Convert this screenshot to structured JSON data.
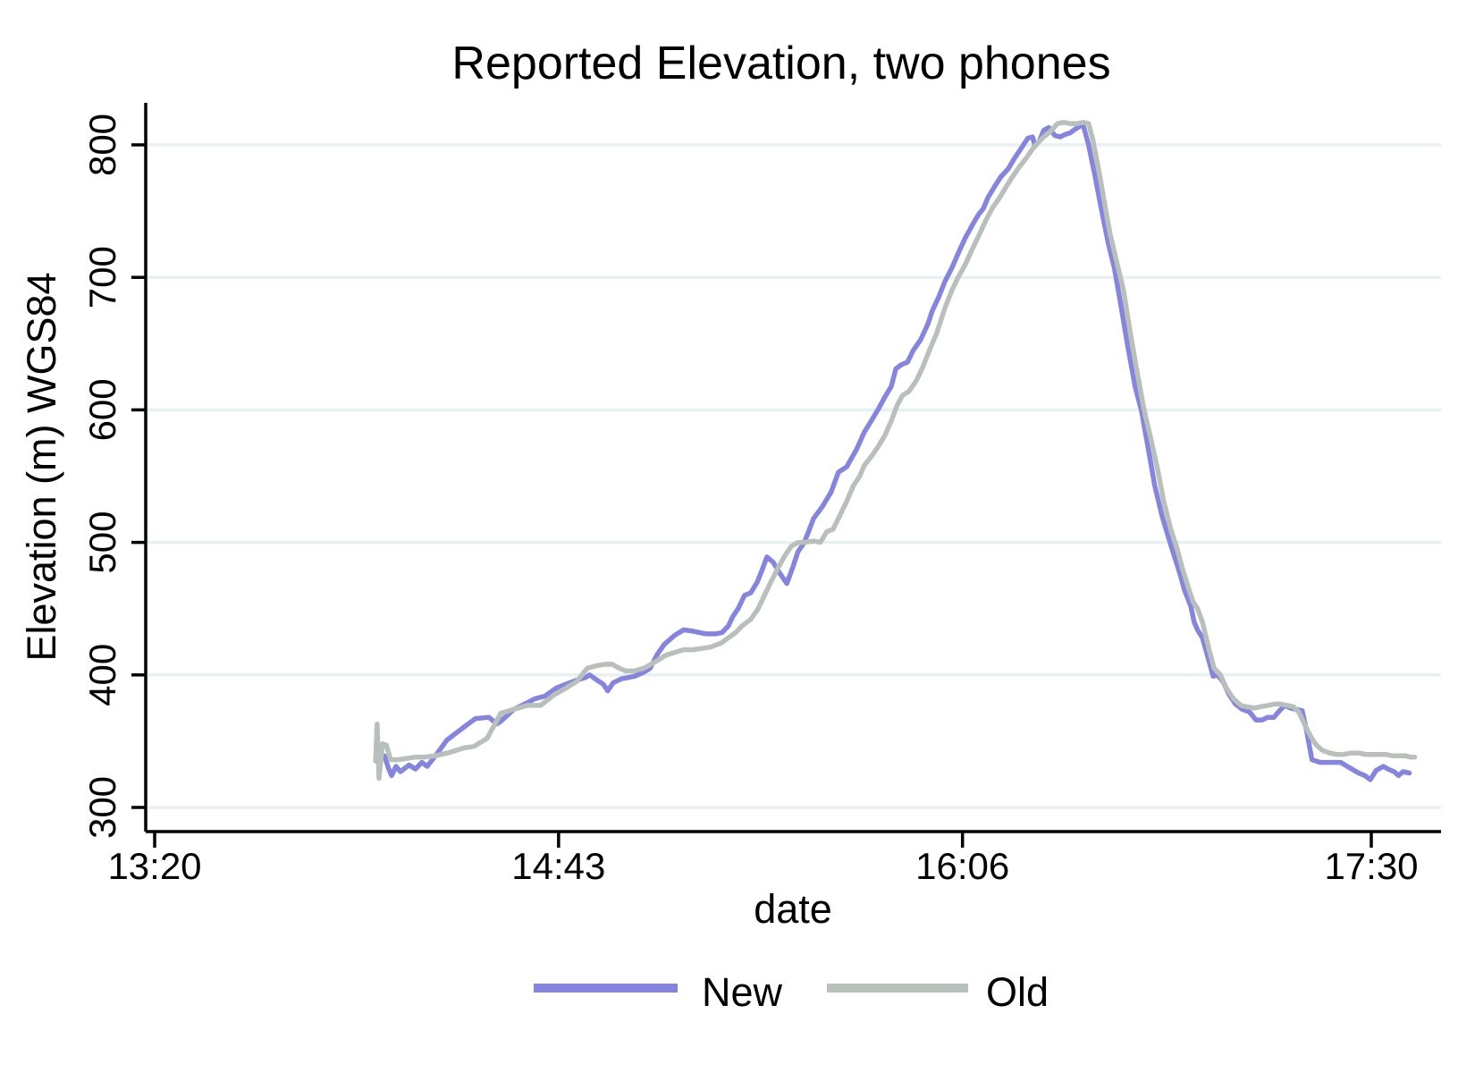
{
  "colors": {
    "title": "#21375c",
    "axis": "#000000",
    "grid": "#e8f1f1",
    "background": "#ffffff",
    "new_line": "#8585e0",
    "old_line": "#b9c0bb"
  },
  "chart_data": {
    "type": "line",
    "title": "Reported Elevation, two phones",
    "xlabel": "date",
    "ylabel": "Elevation (m) WGS84",
    "grid": "horizontal",
    "legend_position": "bottom",
    "x_unit": "minutes since midnight (13:20 = 800)",
    "xlim": [
      798,
      1064
    ],
    "ylim": [
      282,
      832
    ],
    "xticks": [
      {
        "t": 800,
        "label": "13:20"
      },
      {
        "t": 883,
        "label": "14:43"
      },
      {
        "t": 966,
        "label": "16:06"
      },
      {
        "t": 1050,
        "label": "17:30"
      }
    ],
    "yticks": [
      300,
      400,
      500,
      600,
      700,
      800
    ],
    "series": [
      {
        "name": "New",
        "color": "#8585e0",
        "points": [
          [
            847.2,
            339
          ],
          [
            848.1,
            329
          ],
          [
            848.7,
            324
          ],
          [
            849.6,
            331
          ],
          [
            850.5,
            327
          ],
          [
            852.3,
            332
          ],
          [
            853.6,
            329
          ],
          [
            854.9,
            334
          ],
          [
            856.0,
            331
          ],
          [
            857.7,
            339
          ],
          [
            860.1,
            351
          ],
          [
            863.7,
            361
          ],
          [
            865.9,
            367
          ],
          [
            868.7,
            368
          ],
          [
            870.3,
            363
          ],
          [
            871.1,
            365
          ],
          [
            873.8,
            374
          ],
          [
            876.6,
            379
          ],
          [
            878.1,
            382
          ],
          [
            880.2,
            384
          ],
          [
            882.5,
            390
          ],
          [
            884.5,
            393
          ],
          [
            886.7,
            396
          ],
          [
            888.5,
            398
          ],
          [
            889.4,
            400
          ],
          [
            890.9,
            396
          ],
          [
            892.2,
            393
          ],
          [
            893.1,
            388
          ],
          [
            894.2,
            394
          ],
          [
            895.9,
            397
          ],
          [
            898.6,
            399
          ],
          [
            900.5,
            402
          ],
          [
            901.8,
            405
          ],
          [
            903.2,
            415
          ],
          [
            904.7,
            423
          ],
          [
            906.9,
            430
          ],
          [
            908.7,
            434
          ],
          [
            910.6,
            433
          ],
          [
            913.3,
            431
          ],
          [
            915.2,
            431
          ],
          [
            916.6,
            432
          ],
          [
            917.9,
            437
          ],
          [
            918.8,
            444
          ],
          [
            919.9,
            450
          ],
          [
            921.2,
            460
          ],
          [
            922.5,
            462
          ],
          [
            923.8,
            470
          ],
          [
            924.9,
            480
          ],
          [
            925.8,
            489
          ],
          [
            927.1,
            485
          ],
          [
            928.4,
            477
          ],
          [
            929.9,
            469
          ],
          [
            931.0,
            480
          ],
          [
            932.2,
            493
          ],
          [
            933.5,
            500
          ],
          [
            935.4,
            518
          ],
          [
            937.2,
            527
          ],
          [
            939.0,
            538
          ],
          [
            940.5,
            553
          ],
          [
            942.2,
            557
          ],
          [
            944.2,
            570
          ],
          [
            945.8,
            583
          ],
          [
            947.3,
            592
          ],
          [
            948.6,
            600
          ],
          [
            950.1,
            610
          ],
          [
            951.4,
            618
          ],
          [
            952.3,
            631
          ],
          [
            953.4,
            634
          ],
          [
            954.7,
            636
          ],
          [
            955.9,
            645
          ],
          [
            957.4,
            653
          ],
          [
            958.9,
            665
          ],
          [
            959.8,
            675
          ],
          [
            961.1,
            685
          ],
          [
            962.4,
            697
          ],
          [
            963.8,
            707
          ],
          [
            965.1,
            718
          ],
          [
            966.6,
            730
          ],
          [
            968.4,
            742
          ],
          [
            969.4,
            748
          ],
          [
            970.3,
            752
          ],
          [
            971.2,
            760
          ],
          [
            972.5,
            768
          ],
          [
            973.9,
            776
          ],
          [
            975.4,
            782
          ],
          [
            976.7,
            790
          ],
          [
            978.0,
            797
          ],
          [
            979.4,
            805
          ],
          [
            980.4,
            806
          ],
          [
            980.9,
            799
          ],
          [
            981.8,
            803
          ],
          [
            982.7,
            811
          ],
          [
            983.7,
            813
          ],
          [
            985.0,
            807
          ],
          [
            986.1,
            806
          ],
          [
            987.2,
            808
          ],
          [
            988.1,
            809
          ],
          [
            989.2,
            812
          ],
          [
            990.1,
            814
          ],
          [
            990.8,
            815
          ],
          [
            991.9,
            800
          ],
          [
            993.2,
            777
          ],
          [
            994.5,
            752
          ],
          [
            996.0,
            725
          ],
          [
            997.2,
            707
          ],
          [
            998.5,
            680
          ],
          [
            1000.0,
            647
          ],
          [
            1001.5,
            617
          ],
          [
            1002.8,
            599
          ],
          [
            1004.2,
            570
          ],
          [
            1005.5,
            543
          ],
          [
            1007.0,
            520
          ],
          [
            1008.3,
            504
          ],
          [
            1009.4,
            491
          ],
          [
            1010.7,
            476
          ],
          [
            1011.6,
            464
          ],
          [
            1012.9,
            452
          ],
          [
            1013.6,
            440
          ],
          [
            1014.3,
            434
          ],
          [
            1015.3,
            428
          ],
          [
            1016.6,
            411
          ],
          [
            1017.5,
            399
          ],
          [
            1018.4,
            400
          ],
          [
            1019.5,
            395
          ],
          [
            1020.8,
            385
          ],
          [
            1022.1,
            378
          ],
          [
            1023.5,
            374
          ],
          [
            1025.0,
            372
          ],
          [
            1026.3,
            366
          ],
          [
            1027.6,
            366
          ],
          [
            1028.7,
            368
          ],
          [
            1030.0,
            368
          ],
          [
            1030.9,
            372
          ],
          [
            1032.2,
            377
          ],
          [
            1033.4,
            375
          ],
          [
            1034.5,
            374
          ],
          [
            1035.8,
            373
          ],
          [
            1036.7,
            358
          ],
          [
            1037.8,
            336
          ],
          [
            1039.5,
            334
          ],
          [
            1041.5,
            334
          ],
          [
            1043.7,
            334
          ],
          [
            1045.5,
            330
          ],
          [
            1047.4,
            326
          ],
          [
            1048.7,
            324
          ],
          [
            1049.8,
            321
          ],
          [
            1051.0,
            328
          ],
          [
            1052.5,
            331
          ],
          [
            1053.4,
            329
          ],
          [
            1054.7,
            327
          ],
          [
            1055.6,
            324
          ],
          [
            1056.5,
            327
          ],
          [
            1057.8,
            326
          ]
        ]
      },
      {
        "name": "Old",
        "color": "#b9c0bb",
        "points": [
          [
            845.4,
            335
          ],
          [
            845.7,
            363
          ],
          [
            846.1,
            322
          ],
          [
            846.8,
            348
          ],
          [
            847.6,
            347
          ],
          [
            848.5,
            336
          ],
          [
            850.0,
            336
          ],
          [
            851.8,
            337
          ],
          [
            853.6,
            338
          ],
          [
            855.5,
            338
          ],
          [
            857.7,
            339
          ],
          [
            860.1,
            341
          ],
          [
            861.9,
            343
          ],
          [
            863.7,
            345
          ],
          [
            865.6,
            346
          ],
          [
            868.3,
            352
          ],
          [
            871.1,
            371
          ],
          [
            873.8,
            374
          ],
          [
            876.6,
            377
          ],
          [
            879.3,
            377
          ],
          [
            882.1,
            385
          ],
          [
            884.5,
            390
          ],
          [
            886.7,
            395
          ],
          [
            888.9,
            405
          ],
          [
            890.9,
            407
          ],
          [
            892.6,
            408
          ],
          [
            894.0,
            408
          ],
          [
            895.5,
            405
          ],
          [
            896.8,
            403
          ],
          [
            898.6,
            403
          ],
          [
            900.5,
            405
          ],
          [
            902.9,
            410
          ],
          [
            905.1,
            415
          ],
          [
            906.9,
            417
          ],
          [
            908.7,
            419
          ],
          [
            910.6,
            419
          ],
          [
            912.4,
            420
          ],
          [
            914.2,
            421
          ],
          [
            916.4,
            424
          ],
          [
            917.9,
            428
          ],
          [
            919.4,
            432
          ],
          [
            920.7,
            437
          ],
          [
            922.5,
            442
          ],
          [
            924.0,
            450
          ],
          [
            925.3,
            460
          ],
          [
            926.6,
            470
          ],
          [
            928.0,
            480
          ],
          [
            929.5,
            490
          ],
          [
            930.8,
            497
          ],
          [
            932.2,
            500
          ],
          [
            933.5,
            500
          ],
          [
            935.4,
            501
          ],
          [
            936.8,
            500
          ],
          [
            938.1,
            508
          ],
          [
            939.4,
            510
          ],
          [
            940.5,
            518
          ],
          [
            942.2,
            531
          ],
          [
            943.6,
            543
          ],
          [
            944.9,
            550
          ],
          [
            945.8,
            558
          ],
          [
            947.3,
            565
          ],
          [
            948.6,
            572
          ],
          [
            950.1,
            581
          ],
          [
            951.4,
            592
          ],
          [
            952.5,
            603
          ],
          [
            953.7,
            611
          ],
          [
            955.0,
            614
          ],
          [
            956.5,
            622
          ],
          [
            957.8,
            632
          ],
          [
            959.2,
            645
          ],
          [
            960.7,
            658
          ],
          [
            962.4,
            677
          ],
          [
            963.8,
            690
          ],
          [
            965.1,
            700
          ],
          [
            966.6,
            710
          ],
          [
            968.1,
            722
          ],
          [
            969.4,
            732
          ],
          [
            970.8,
            743
          ],
          [
            972.1,
            752
          ],
          [
            973.6,
            760
          ],
          [
            974.9,
            768
          ],
          [
            976.1,
            775
          ],
          [
            977.6,
            783
          ],
          [
            979.1,
            790
          ],
          [
            980.4,
            797
          ],
          [
            981.6,
            802
          ],
          [
            982.7,
            806
          ],
          [
            984.0,
            810
          ],
          [
            985.5,
            816
          ],
          [
            986.8,
            817
          ],
          [
            988.1,
            816
          ],
          [
            989.5,
            816
          ],
          [
            990.8,
            817
          ],
          [
            991.9,
            816
          ],
          [
            992.7,
            805
          ],
          [
            993.8,
            785
          ],
          [
            995.0,
            760
          ],
          [
            996.3,
            733
          ],
          [
            997.8,
            710
          ],
          [
            999.1,
            690
          ],
          [
            1000.4,
            660
          ],
          [
            1001.8,
            630
          ],
          [
            1003.3,
            600
          ],
          [
            1004.6,
            580
          ],
          [
            1006.1,
            555
          ],
          [
            1007.4,
            530
          ],
          [
            1008.8,
            510
          ],
          [
            1010.1,
            495
          ],
          [
            1011.2,
            480
          ],
          [
            1012.5,
            465
          ],
          [
            1013.4,
            455
          ],
          [
            1014.3,
            450
          ],
          [
            1015.3,
            440
          ],
          [
            1016.6,
            420
          ],
          [
            1017.7,
            405
          ],
          [
            1019.0,
            400
          ],
          [
            1020.2,
            390
          ],
          [
            1021.7,
            382
          ],
          [
            1023.2,
            377
          ],
          [
            1024.4,
            376
          ],
          [
            1025.9,
            375
          ],
          [
            1027.2,
            376
          ],
          [
            1028.7,
            377
          ],
          [
            1030.1,
            378
          ],
          [
            1031.4,
            378
          ],
          [
            1032.7,
            377
          ],
          [
            1034.0,
            376
          ],
          [
            1035.1,
            372
          ],
          [
            1036.0,
            365
          ],
          [
            1036.9,
            358
          ],
          [
            1037.8,
            352
          ],
          [
            1038.7,
            347
          ],
          [
            1040.0,
            343
          ],
          [
            1041.5,
            341
          ],
          [
            1042.8,
            340
          ],
          [
            1044.2,
            340
          ],
          [
            1045.9,
            341
          ],
          [
            1047.4,
            341
          ],
          [
            1048.8,
            340
          ],
          [
            1050.1,
            340
          ],
          [
            1051.6,
            340
          ],
          [
            1052.9,
            340
          ],
          [
            1054.3,
            339
          ],
          [
            1055.6,
            339
          ],
          [
            1056.9,
            339
          ],
          [
            1058.0,
            338
          ],
          [
            1058.9,
            338
          ]
        ]
      }
    ]
  },
  "legend": {
    "items": [
      {
        "label": "New",
        "color": "#8585e0"
      },
      {
        "label": "Old",
        "color": "#b9c0bb"
      }
    ]
  }
}
